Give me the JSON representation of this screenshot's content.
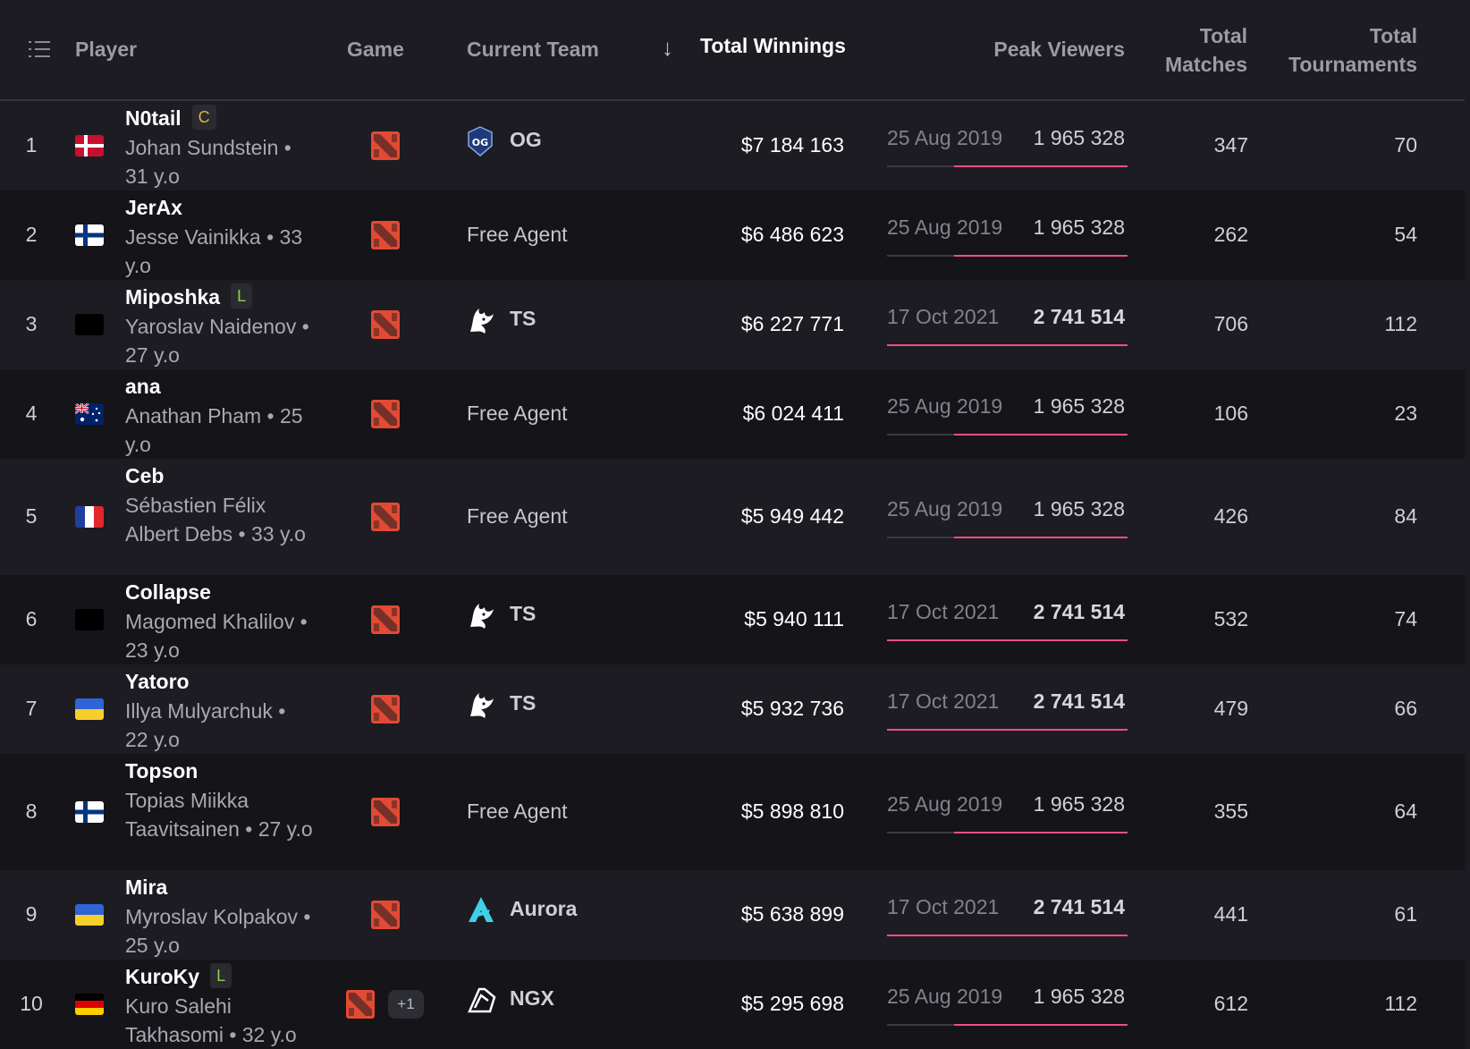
{
  "header": {
    "player": "Player",
    "game": "Game",
    "team": "Current Team",
    "sort_indicator": "↓",
    "winnings": "Total Winnings",
    "peak": "Peak Viewers",
    "matches_line1": "Total",
    "matches_line2": "Matches",
    "tournaments_line1": "Total",
    "tournaments_line2": "Tournaments"
  },
  "game_icon": "dota2-icon",
  "rows": [
    {
      "rank": "1",
      "flag": "denmark",
      "name": "N0tail",
      "badge": "C",
      "sub": "Johan Sundstein • 31 y.o",
      "team": "OG",
      "team_logo": "og-logo",
      "winnings": "$7 184 163",
      "peak_date": "25 Aug 2019",
      "peak_value": "1 965 328",
      "peak_fraction": 0.72,
      "matches": "347",
      "tournaments": "70"
    },
    {
      "rank": "2",
      "flag": "finland",
      "name": "JerAx",
      "badge": "",
      "sub": "Jesse Vainikka • 33 y.o",
      "team": "Free Agent",
      "team_logo": "",
      "winnings": "$6 486 623",
      "peak_date": "25 Aug 2019",
      "peak_value": "1 965 328",
      "peak_fraction": 0.72,
      "matches": "262",
      "tournaments": "54"
    },
    {
      "rank": "3",
      "flag": "none",
      "name": "Miposhka",
      "badge": "L",
      "sub": "Yaroslav Naidenov • 27 y.o",
      "team": "TS",
      "team_logo": "team-spirit-logo",
      "winnings": "$6 227 771",
      "peak_date": "17 Oct 2021",
      "peak_value": "2 741 514",
      "peak_fraction": 1.0,
      "matches": "706",
      "tournaments": "112"
    },
    {
      "rank": "4",
      "flag": "australia",
      "name": "ana",
      "badge": "",
      "sub": "Anathan Pham • 25 y.o",
      "team": "Free Agent",
      "team_logo": "",
      "winnings": "$6 024 411",
      "peak_date": "25 Aug 2019",
      "peak_value": "1 965 328",
      "peak_fraction": 0.72,
      "matches": "106",
      "tournaments": "23"
    },
    {
      "rank": "5",
      "flag": "france",
      "name": "Ceb",
      "badge": "",
      "sub": "Sébastien Félix Albert Debs • 33 y.o",
      "team": "Free Agent",
      "team_logo": "",
      "winnings": "$5 949 442",
      "peak_date": "25 Aug 2019",
      "peak_value": "1 965 328",
      "peak_fraction": 0.72,
      "matches": "426",
      "tournaments": "84"
    },
    {
      "rank": "6",
      "flag": "none",
      "name": "Collapse",
      "badge": "",
      "sub": "Magomed Khalilov • 23 y.o",
      "team": "TS",
      "team_logo": "team-spirit-logo",
      "winnings": "$5 940 111",
      "peak_date": "17 Oct 2021",
      "peak_value": "2 741 514",
      "peak_fraction": 1.0,
      "matches": "532",
      "tournaments": "74"
    },
    {
      "rank": "7",
      "flag": "ukraine",
      "name": "Yatoro",
      "badge": "",
      "sub": "Illya Mulyarchuk • 22 y.o",
      "team": "TS",
      "team_logo": "team-spirit-logo",
      "winnings": "$5 932 736",
      "peak_date": "17 Oct 2021",
      "peak_value": "2 741 514",
      "peak_fraction": 1.0,
      "matches": "479",
      "tournaments": "66"
    },
    {
      "rank": "8",
      "flag": "finland",
      "name": "Topson",
      "badge": "",
      "sub": "Topias Miikka Taavitsainen • 27 y.o",
      "team": "Free Agent",
      "team_logo": "",
      "winnings": "$5 898 810",
      "peak_date": "25 Aug 2019",
      "peak_value": "1 965 328",
      "peak_fraction": 0.72,
      "matches": "355",
      "tournaments": "64"
    },
    {
      "rank": "9",
      "flag": "ukraine",
      "name": "Mira",
      "badge": "",
      "sub": "Myroslav Kolpakov • 25 y.o",
      "team": "Aurora",
      "team_logo": "aurora-logo",
      "winnings": "$5 638 899",
      "peak_date": "17 Oct 2021",
      "peak_value": "2 741 514",
      "peak_fraction": 1.0,
      "matches": "441",
      "tournaments": "61"
    },
    {
      "rank": "10",
      "flag": "germany",
      "name": "KuroKy",
      "badge": "L",
      "sub": "Kuro Salehi Takhasomi • 32 y.o",
      "extra_games": "+1",
      "team": "NGX",
      "team_logo": "ngx-logo",
      "winnings": "$5 295 698",
      "peak_date": "25 Aug 2019",
      "peak_value": "1 965 328",
      "peak_fraction": 0.72,
      "matches": "612",
      "tournaments": "112"
    }
  ],
  "colors": {
    "accent": "#ef4f86",
    "dota_red": "#e34a33",
    "badge_captain": "#e0b23c",
    "badge_leader": "#8fcf4f"
  }
}
